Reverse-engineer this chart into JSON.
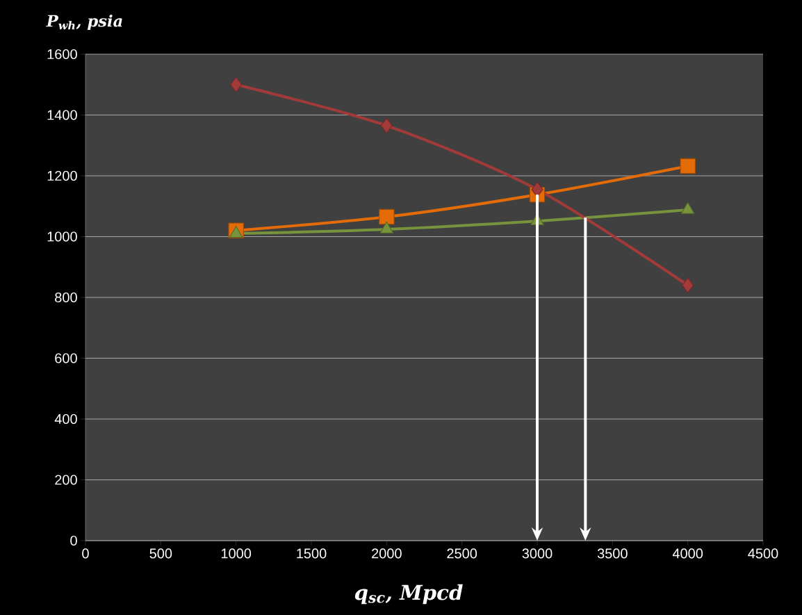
{
  "chart_data": {
    "type": "line",
    "xlabel": "q$_{sc}$, Mpcd",
    "ylabel": "P$_{wh}$, psia",
    "x": [
      1000,
      2000,
      3000,
      4000
    ],
    "series": [
      {
        "color": "#a33a3a",
        "marker": "diamond",
        "values": [
          1500,
          1365,
          1155,
          840
        ]
      },
      {
        "color": "#e36c09",
        "marker": "square",
        "values": [
          1020,
          1065,
          1138,
          1232
        ]
      },
      {
        "color": "#77933c",
        "marker": "triangle",
        "values": [
          1010,
          1024,
          1051,
          1088
        ]
      }
    ],
    "xlim": [
      0,
      4500
    ],
    "xticks": [
      0,
      500,
      1000,
      1500,
      2000,
      2500,
      3000,
      3500,
      4000,
      4500
    ],
    "ylim": [
      0,
      1600
    ],
    "yticks": [
      0,
      200,
      400,
      600,
      800,
      1000,
      1200,
      1400,
      1600
    ],
    "grid": "y",
    "ref_lines": [
      {
        "axis": "x",
        "value": 3000,
        "color": "#ffffff"
      },
      {
        "axis": "x",
        "value": 3320,
        "color": "#ffffff"
      }
    ]
  }
}
